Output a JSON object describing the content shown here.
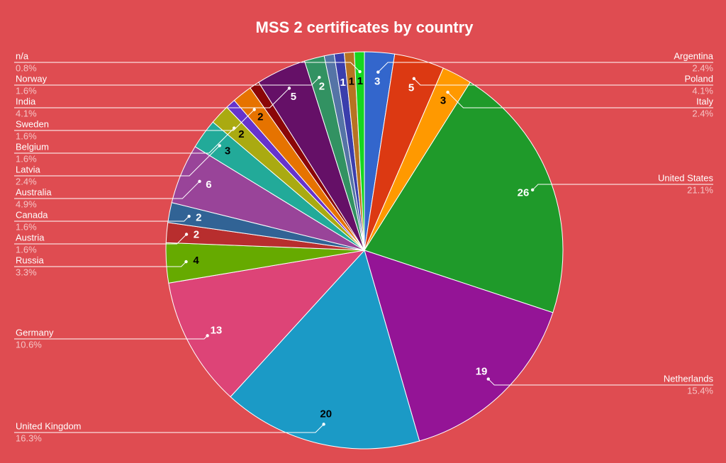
{
  "chart_data": {
    "type": "pie",
    "title": "MSS 2 certificates by country",
    "categories": [
      "Argentina",
      "Poland",
      "Italy",
      "United States",
      "Netherlands",
      "United Kingdom",
      "Germany",
      "Russia",
      "Austria",
      "Canada",
      "Australia",
      "Latvia",
      "Belgium",
      null,
      "Sweden",
      null,
      "India",
      "Norway",
      null,
      null,
      null,
      "n/a"
    ],
    "values": [
      3,
      5,
      3,
      26,
      19,
      20,
      13,
      4,
      2,
      2,
      6,
      3,
      2,
      1,
      2,
      1,
      5,
      2,
      1,
      1,
      1,
      1
    ],
    "value_labels": [
      "3",
      "5",
      "3",
      "26",
      "19",
      "20",
      "13",
      "4",
      "2",
      "2",
      "6",
      "3",
      "2",
      null,
      "2",
      null,
      "5",
      "2",
      null,
      "1",
      "1",
      "1"
    ],
    "percent_labels": [
      "2.4%",
      "4.1%",
      "2.4%",
      "21.1%",
      "15.4%",
      "16.3%",
      "10.6%",
      "3.3%",
      "1.6%",
      "1.6%",
      "4.9%",
      "2.4%",
      "1.6%",
      null,
      "1.6%",
      null,
      "4.1%",
      "1.6%",
      null,
      null,
      null,
      "0.8%"
    ],
    "colors": [
      "#3366cc",
      "#dc3912",
      "#ff9900",
      "#1f9a2a",
      "#941496",
      "#1b9ac6",
      "#dd4477",
      "#66aa00",
      "#b82e2e",
      "#316395",
      "#994499",
      "#22aa99",
      "#aaaa11",
      "#6633cc",
      "#e67300",
      "#8b0707",
      "#651067",
      "#329262",
      "#5574a6",
      "#3b3eac",
      "#b77322",
      "#16d620"
    ]
  }
}
